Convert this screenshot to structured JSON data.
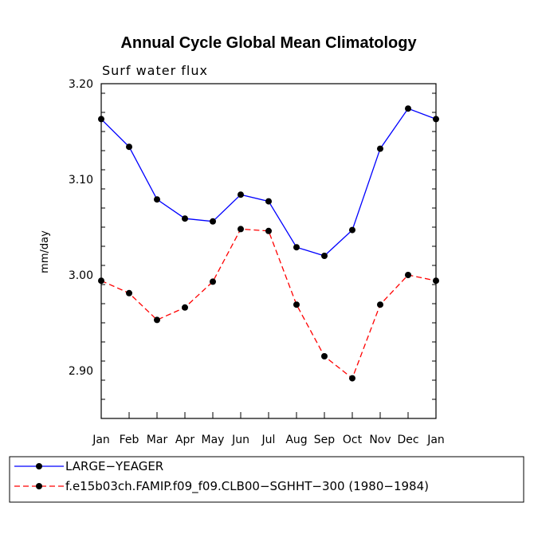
{
  "chart_data": {
    "type": "line",
    "title": "Annual Cycle Global Mean Climatology",
    "subtitle": "Surf water flux",
    "xlabel": "",
    "ylabel": "mm/day",
    "categories": [
      "Jan",
      "Feb",
      "Mar",
      "Apr",
      "May",
      "Jun",
      "Jul",
      "Aug",
      "Sep",
      "Oct",
      "Nov",
      "Dec",
      "Jan"
    ],
    "ylim": [
      2.85,
      3.2
    ],
    "yticks": [
      2.9,
      3.0,
      3.1,
      3.2
    ],
    "ytick_labels": [
      "2.90",
      "3.00",
      "3.10",
      "3.20"
    ],
    "series": [
      {
        "name": "LARGE−YEAGER",
        "color": "#0000ff",
        "dash": "solid",
        "values": [
          3.163,
          3.134,
          3.079,
          3.059,
          3.056,
          3.084,
          3.077,
          3.029,
          3.02,
          3.047,
          3.132,
          3.174,
          3.163
        ]
      },
      {
        "name": "f.e15b03ch.FAMIP.f09_f09.CLB00−SGHHT−300 (1980−1984)",
        "color": "#ff0000",
        "dash": "dashed",
        "values": [
          2.994,
          2.981,
          2.953,
          2.966,
          2.993,
          3.048,
          3.046,
          2.969,
          2.915,
          2.892,
          2.969,
          3.0,
          2.994
        ]
      }
    ],
    "legend_position": "bottom-left"
  }
}
